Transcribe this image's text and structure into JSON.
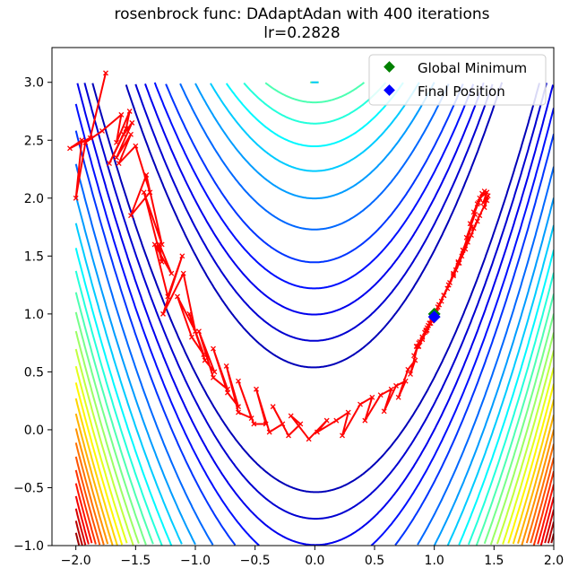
{
  "chart_data": {
    "type": "line",
    "title_lines": [
      "rosenbrock func: DAdaptAdan with 400 iterations",
      "lr=0.2828"
    ],
    "xlabel": "",
    "ylabel": "",
    "xlim": [
      -2.2,
      2.0
    ],
    "ylim": [
      -1.0,
      3.3
    ],
    "x_ticks": [
      -2.0,
      -1.5,
      -1.0,
      -0.5,
      0.0,
      0.5,
      1.0,
      1.5,
      2.0
    ],
    "x_tick_labels": [
      "−2.0",
      "−1.5",
      "−1.0",
      "−0.5",
      "0.0",
      "0.5",
      "1.0",
      "1.5",
      "2.0"
    ],
    "y_ticks": [
      -1.0,
      -0.5,
      0.0,
      0.5,
      1.0,
      1.5,
      2.0,
      2.5,
      3.0
    ],
    "y_tick_labels": [
      "−1.0",
      "−0.5",
      "0.0",
      "0.5",
      "1.0",
      "1.5",
      "2.0",
      "2.5",
      "3.0"
    ],
    "grid": false,
    "legend_position": "top-right",
    "contours": {
      "function": "rosenbrock",
      "x_range": [
        -2.0,
        2.0
      ],
      "y_range": [
        -1.0,
        3.0
      ],
      "level_values": [
        30,
        60,
        100,
        150,
        210,
        300,
        400,
        500,
        600,
        700,
        800,
        900,
        1000,
        1100,
        1200,
        1300,
        1400,
        1500,
        1600,
        1700,
        1800,
        1900,
        2000,
        2100,
        2200,
        2300,
        2400,
        2500
      ],
      "colormap_colors": [
        "#00008f",
        "#0000ff",
        "#0080ff",
        "#00ffff",
        "#80ff80",
        "#ffff00",
        "#ff8000",
        "#ff0000",
        "#800000"
      ]
    },
    "series": [
      {
        "type": "line",
        "color": "#ff0000",
        "marker": "x",
        "x": [
          -1.75,
          -1.88,
          -2.05,
          -1.95,
          -2.0,
          -1.92,
          -1.78,
          -1.62,
          -1.66,
          -1.55,
          -1.58,
          -1.72,
          -1.6,
          -1.53,
          -1.66,
          -1.54,
          -1.64,
          -1.5,
          -1.38,
          -1.54,
          -1.41,
          -1.28,
          -1.43,
          -1.28,
          -1.3,
          -1.2,
          -1.34,
          -1.23,
          -1.11,
          -1.27,
          -1.1,
          -1.0,
          -1.15,
          -1.03,
          -0.93,
          -1.05,
          -0.92,
          -0.84,
          -0.97,
          -0.85,
          -0.73,
          -0.85,
          -0.73,
          -0.64,
          -0.74,
          -0.64,
          -0.53,
          -0.64,
          -0.51,
          -0.41,
          -0.49,
          -0.38,
          -0.27,
          -0.35,
          -0.22,
          -0.12,
          -0.2,
          -0.05,
          0.1,
          0.02,
          0.18,
          0.28,
          0.23,
          0.38,
          0.48,
          0.42,
          0.55,
          0.64,
          0.58,
          0.68,
          0.76,
          0.7,
          0.78,
          0.84,
          0.8,
          0.86,
          0.83,
          0.9,
          0.87,
          0.94,
          0.9,
          0.97,
          0.93,
          1.0,
          0.96,
          1.04,
          1.0,
          1.08,
          1.04,
          1.12,
          1.08,
          1.16,
          1.12,
          1.2,
          1.16,
          1.24,
          1.2,
          1.28,
          1.24,
          1.31,
          1.27,
          1.34,
          1.3,
          1.37,
          1.33,
          1.4,
          1.36,
          1.42,
          1.38,
          1.44,
          1.41,
          1.45,
          1.42,
          1.44,
          1.38,
          1.33,
          1.36,
          1.28,
          1.31,
          1.23,
          1.26,
          1.18,
          1.21,
          1.13,
          1.16,
          1.08,
          1.11,
          1.03,
          1.06,
          0.99,
          1.02,
          0.95,
          0.98,
          0.92,
          0.94,
          0.9,
          0.88,
          0.85,
          0.87,
          0.9,
          0.93,
          0.96,
          0.98,
          1.0
        ],
        "y": [
          3.08,
          2.52,
          2.43,
          2.5,
          2.0,
          2.48,
          2.58,
          2.72,
          2.48,
          2.75,
          2.6,
          2.3,
          2.55,
          2.65,
          2.35,
          2.55,
          2.3,
          2.45,
          2.05,
          1.85,
          2.2,
          1.6,
          2.05,
          1.45,
          1.6,
          1.35,
          1.6,
          1.15,
          1.5,
          1.0,
          1.35,
          0.85,
          1.15,
          0.8,
          0.65,
          1.0,
          0.6,
          0.5,
          0.85,
          0.45,
          0.35,
          0.7,
          0.32,
          0.2,
          0.55,
          0.15,
          0.1,
          0.42,
          0.05,
          0.05,
          0.35,
          -0.02,
          0.05,
          0.2,
          -0.05,
          0.05,
          0.12,
          -0.08,
          0.08,
          -0.02,
          0.08,
          0.15,
          -0.05,
          0.22,
          0.28,
          0.08,
          0.3,
          0.35,
          0.16,
          0.38,
          0.42,
          0.28,
          0.52,
          0.6,
          0.48,
          0.72,
          0.64,
          0.8,
          0.72,
          0.86,
          0.78,
          0.92,
          0.85,
          1.0,
          0.92,
          1.08,
          1.0,
          1.16,
          1.08,
          1.25,
          1.16,
          1.34,
          1.25,
          1.44,
          1.35,
          1.55,
          1.45,
          1.65,
          1.55,
          1.75,
          1.66,
          1.86,
          1.78,
          1.96,
          1.88,
          2.04,
          1.95,
          2.06,
          2.0,
          2.05,
          1.96,
          2.02,
          1.92,
          1.98,
          1.85,
          1.74,
          1.8,
          1.62,
          1.68,
          1.5,
          1.56,
          1.38,
          1.44,
          1.27,
          1.33,
          1.16,
          1.22,
          1.06,
          1.11,
          0.97,
          1.02,
          0.9,
          0.94,
          0.84,
          0.88,
          0.8,
          0.76,
          0.72,
          0.75,
          0.8,
          0.86,
          0.92,
          0.97,
          1.0
        ]
      },
      {
        "name": "Global Minimum",
        "type": "point",
        "marker": "D",
        "color": "#008000",
        "x": [
          1.0
        ],
        "y": [
          1.0
        ]
      },
      {
        "name": "Final Position",
        "type": "point",
        "marker": "D",
        "color": "#0000ff",
        "x": [
          1.0
        ],
        "y": [
          0.975
        ]
      }
    ]
  },
  "legend": {
    "items": [
      {
        "label": "Global Minimum",
        "color": "#008000"
      },
      {
        "label": "Final Position",
        "color": "#0000ff"
      }
    ]
  }
}
